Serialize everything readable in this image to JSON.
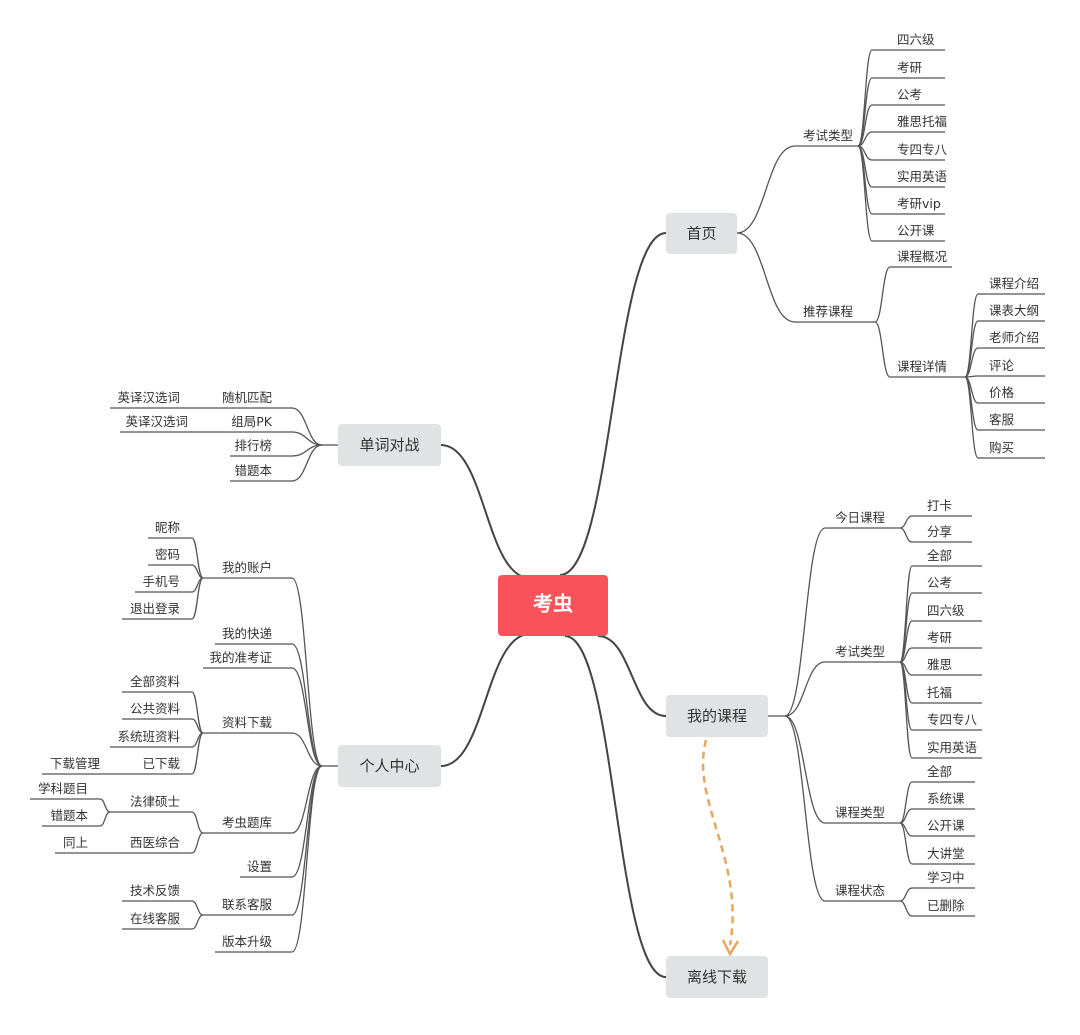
{
  "root": {
    "label": "考虫",
    "color": "#f8525a"
  },
  "branch_color": "#dfe3e3",
  "arrow_color": "#e9a55c",
  "home": {
    "label": "首页",
    "exam_types": {
      "label": "考试类型",
      "items": [
        "四六级",
        "考研",
        "公考",
        "雅思托福",
        "专四专八",
        "实用英语",
        "考研vip",
        "公开课"
      ]
    },
    "recommended": {
      "label": "推荐课程",
      "overview": "课程概况",
      "details": {
        "label": "课程详情",
        "items": [
          "课程介绍",
          "课表大纲",
          "老师介绍",
          "评论",
          "价格",
          "客服",
          "购买"
        ]
      }
    }
  },
  "word_battle": {
    "label": "单词对战",
    "items": [
      {
        "label": "随机匹配",
        "sub": "英译汉选词"
      },
      {
        "label": "组局PK",
        "sub": "英译汉选词"
      },
      {
        "label": "排行榜"
      },
      {
        "label": "错题本"
      }
    ]
  },
  "personal": {
    "label": "个人中心",
    "account": {
      "label": "我的账户",
      "items": [
        "昵称",
        "密码",
        "手机号",
        "退出登录"
      ]
    },
    "express": "我的快递",
    "ticket": "我的准考证",
    "downloads": {
      "label": "资料下载",
      "items": [
        "全部资料",
        "公共资料",
        "系统班资料",
        "已下载"
      ],
      "downloaded_sub": "下载管理"
    },
    "question_bank": {
      "label": "考虫题库",
      "law": {
        "label": "法律硕士",
        "items": [
          "学科题目",
          "错题本"
        ]
      },
      "medicine": {
        "label": "西医综合",
        "sub": "同上"
      }
    },
    "settings": "设置",
    "support": {
      "label": "联系客服",
      "items": [
        "技术反馈",
        "在线客服"
      ]
    },
    "upgrade": "版本升级"
  },
  "my_courses": {
    "label": "我的课程",
    "today": {
      "label": "今日课程",
      "items": [
        "打卡",
        "分享"
      ]
    },
    "exam_types": {
      "label": "考试类型",
      "items": [
        "全部",
        "公考",
        "四六级",
        "考研",
        "雅思",
        "托福",
        "专四专八",
        "实用英语"
      ]
    },
    "course_types": {
      "label": "课程类型",
      "items": [
        "全部",
        "系统课",
        "公开课",
        "大讲堂"
      ]
    },
    "status": {
      "label": "课程状态",
      "items": [
        "学习中",
        "已删除"
      ]
    }
  },
  "offline": {
    "label": "离线下载"
  }
}
